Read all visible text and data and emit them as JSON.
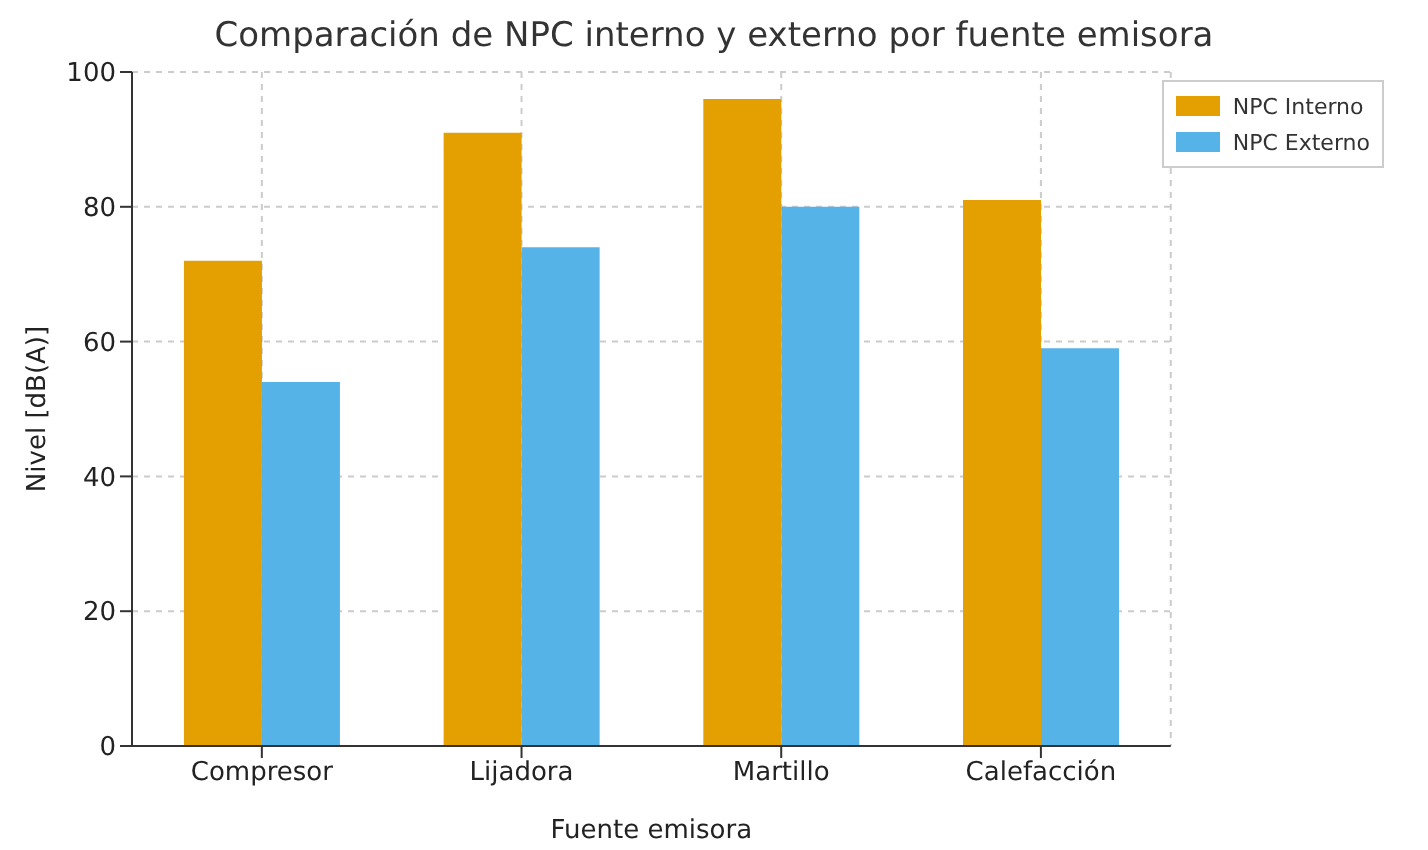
{
  "chart_data": {
    "type": "bar",
    "title": "Comparación de NPC interno y externo por fuente emisora",
    "xlabel": "Fuente emisora",
    "ylabel": "Nivel [dB(A)]",
    "categories": [
      "Compresor",
      "Lijadora",
      "Martillo",
      "Calefacción"
    ],
    "series": [
      {
        "name": "NPC Interno",
        "color": "#e3a000",
        "values": [
          72,
          91,
          96,
          81
        ]
      },
      {
        "name": "NPC Externo",
        "color": "#56b3e8",
        "values": [
          54,
          74,
          80,
          59
        ]
      }
    ],
    "ylim": [
      0,
      100
    ],
    "yticks": [
      0,
      20,
      40,
      60,
      80,
      100
    ],
    "grid": true,
    "legend": "top right"
  }
}
